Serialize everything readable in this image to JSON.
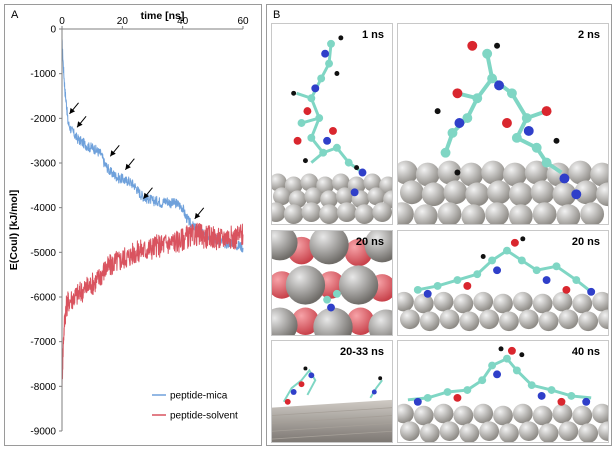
{
  "panel_a": {
    "letter": "A"
  },
  "panel_b": {
    "letter": "B",
    "snapshots": [
      {
        "label": "1 ns"
      },
      {
        "label": "2 ns"
      },
      {
        "label": "20 ns"
      },
      {
        "label": "20 ns"
      },
      {
        "label": "20-33 ns"
      },
      {
        "label": "40 ns"
      }
    ]
  },
  "colors": {
    "mica": "#6fa1db",
    "solvent": "#d9535f",
    "arrow": "#000000"
  },
  "chart_data": {
    "type": "line",
    "title": "",
    "xlabel": "time [ns]",
    "ylabel": "E(Coul) [kJ/mol]",
    "xlim": [
      0,
      60
    ],
    "ylim": [
      -9000,
      0
    ],
    "x_ticks": [
      0,
      20,
      40,
      60
    ],
    "y_ticks": [
      0,
      -1000,
      -2000,
      -3000,
      -4000,
      -5000,
      -6000,
      -7000,
      -8000,
      -9000
    ],
    "x_axis_position": "top",
    "legend": "bottom-right",
    "series": [
      {
        "name": "peptide-mica",
        "color": "#6fa1db",
        "x": [
          0,
          0.5,
          1,
          1.5,
          2,
          3,
          4,
          5,
          6,
          7,
          8,
          9,
          10,
          11,
          12,
          13,
          14,
          15,
          16,
          17,
          18,
          19,
          20,
          21,
          22,
          23,
          24,
          25,
          26,
          27,
          28,
          29,
          30,
          31,
          32,
          33,
          34,
          35,
          36,
          37,
          38,
          39,
          40,
          41,
          42,
          43,
          44,
          45,
          46,
          47,
          48,
          49,
          50,
          51,
          52,
          53,
          54,
          55,
          56,
          57,
          58,
          59,
          60
        ],
        "y": [
          -300,
          -900,
          -1400,
          -1700,
          -2100,
          -2250,
          -2350,
          -2450,
          -2500,
          -2550,
          -2600,
          -2650,
          -2650,
          -2700,
          -2750,
          -2800,
          -3000,
          -3100,
          -3200,
          -3250,
          -3300,
          -3350,
          -3350,
          -3400,
          -3400,
          -3450,
          -3500,
          -3600,
          -3700,
          -3750,
          -3800,
          -3800,
          -3850,
          -3850,
          -3850,
          -3900,
          -3850,
          -3850,
          -3900,
          -3900,
          -3900,
          -3950,
          -4000,
          -4200,
          -4300,
          -4400,
          -4450,
          -4500,
          -4550,
          -4600,
          -4600,
          -4650,
          -4650,
          -4700,
          -4750,
          -4750,
          -4800,
          -4800,
          -4750,
          -4800,
          -4850,
          -4850,
          -4900
        ]
      },
      {
        "name": "peptide-solvent",
        "color": "#d9535f",
        "x": [
          0,
          0.5,
          1,
          1.5,
          2,
          3,
          4,
          5,
          6,
          7,
          8,
          9,
          10,
          11,
          12,
          13,
          14,
          15,
          16,
          17,
          18,
          19,
          20,
          21,
          22,
          23,
          24,
          25,
          26,
          27,
          28,
          29,
          30,
          31,
          32,
          33,
          34,
          35,
          36,
          37,
          38,
          39,
          40,
          41,
          42,
          43,
          44,
          45,
          46,
          47,
          48,
          49,
          50,
          51,
          52,
          53,
          54,
          55,
          56,
          57,
          58,
          59,
          60
        ],
        "y": [
          -7900,
          -6900,
          -6400,
          -6200,
          -6100,
          -6050,
          -6000,
          -5950,
          -5900,
          -5850,
          -5800,
          -5750,
          -5700,
          -5650,
          -5600,
          -5500,
          -5400,
          -5350,
          -5300,
          -5250,
          -5200,
          -5200,
          -5150,
          -5100,
          -5100,
          -5050,
          -5000,
          -5000,
          -4950,
          -4950,
          -4950,
          -4900,
          -4900,
          -4850,
          -4850,
          -4850,
          -4800,
          -4800,
          -4800,
          -4750,
          -4750,
          -4750,
          -4700,
          -4650,
          -4650,
          -4650,
          -4600,
          -4600,
          -4600,
          -4650,
          -4650,
          -4650,
          -4650,
          -4700,
          -4700,
          -4700,
          -4650,
          -4650,
          -4650,
          -4700,
          -4650,
          -4600,
          -4600
        ]
      }
    ],
    "annotations": [
      {
        "type": "arrow",
        "x": 2.5,
        "y": -1900
      },
      {
        "type": "arrow",
        "x": 5,
        "y": -2200
      },
      {
        "type": "arrow",
        "x": 16,
        "y": -2850
      },
      {
        "type": "arrow",
        "x": 21,
        "y": -3150
      },
      {
        "type": "arrow",
        "x": 27,
        "y": -3800
      },
      {
        "type": "arrow",
        "x": 44,
        "y": -4250
      }
    ]
  }
}
